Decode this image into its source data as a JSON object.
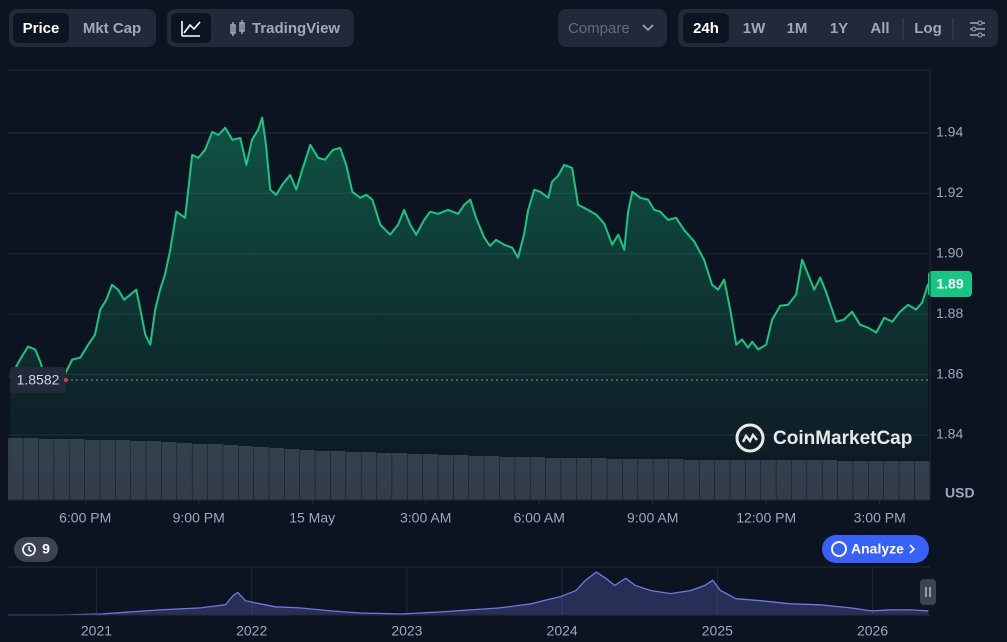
{
  "toolbar": {
    "price": "Price",
    "mkt_cap": "Mkt Cap",
    "tradingview": "TradingView",
    "compare": "Compare",
    "ranges": [
      "24h",
      "1W",
      "1M",
      "1Y",
      "All"
    ],
    "log": "Log"
  },
  "chart_data": {
    "type": "line",
    "color": "#16c784",
    "grid": true,
    "y_unit": "USD",
    "watermark": "CoinMarketCap",
    "open_price": 1.8582,
    "current_price": 1.89,
    "xlim": [
      15.96,
      40.33
    ],
    "xticks": [
      {
        "value": 18,
        "label": "6:00 PM"
      },
      {
        "value": 21,
        "label": "9:00 PM"
      },
      {
        "value": 24,
        "label": "15 May"
      },
      {
        "value": 27,
        "label": "3:00 AM"
      },
      {
        "value": 30,
        "label": "6:00 AM"
      },
      {
        "value": 33,
        "label": "9:00 AM"
      },
      {
        "value": 36,
        "label": "12:00 PM"
      },
      {
        "value": 39,
        "label": "3:00 PM"
      }
    ],
    "ylim": [
      1.8185,
      1.9608
    ],
    "yticks": [
      1.84,
      1.86,
      1.88,
      {
        "value": 1.9,
        "label": "1.90"
      },
      1.92,
      1.94
    ],
    "x": [
      16.02,
      16.28,
      16.49,
      16.68,
      16.81,
      16.94,
      17.21,
      17.47,
      17.66,
      17.87,
      18.08,
      18.26,
      18.4,
      18.56,
      18.71,
      18.87,
      19.03,
      19.19,
      19.35,
      19.45,
      19.59,
      19.72,
      19.85,
      19.98,
      20.11,
      20.25,
      20.41,
      20.64,
      20.83,
      20.99,
      21.17,
      21.36,
      21.52,
      21.7,
      21.89,
      22.1,
      22.26,
      22.41,
      22.57,
      22.68,
      22.78,
      22.89,
      23.05,
      23.21,
      23.42,
      23.58,
      23.74,
      23.95,
      24.16,
      24.34,
      24.55,
      24.74,
      24.9,
      25.06,
      25.27,
      25.43,
      25.59,
      25.8,
      26.06,
      26.27,
      26.43,
      26.59,
      26.75,
      26.96,
      27.12,
      27.33,
      27.59,
      27.86,
      28.02,
      28.18,
      28.33,
      28.55,
      28.7,
      28.86,
      29.07,
      29.29,
      29.44,
      29.6,
      29.71,
      29.87,
      30.03,
      30.24,
      30.34,
      30.5,
      30.66,
      30.87,
      31.03,
      31.29,
      31.51,
      31.72,
      31.93,
      32.09,
      32.25,
      32.35,
      32.46,
      32.67,
      32.88,
      33.04,
      33.2,
      33.41,
      33.62,
      33.83,
      34.1,
      34.36,
      34.57,
      34.73,
      34.89,
      35.05,
      35.21,
      35.36,
      35.52,
      35.63,
      35.79,
      36.0,
      36.16,
      36.37,
      36.58,
      36.79,
      36.95,
      37.11,
      37.27,
      37.43,
      37.58,
      37.85,
      38.06,
      38.27,
      38.48,
      38.7,
      38.91,
      39.12,
      39.33,
      39.54,
      39.75,
      39.96,
      40.12,
      40.28
    ],
    "values": [
      1.859,
      1.865,
      1.8693,
      1.8683,
      1.8643,
      1.859,
      1.859,
      1.8603,
      1.865,
      1.8656,
      1.8699,
      1.8732,
      1.8815,
      1.8848,
      1.8897,
      1.8881,
      1.8848,
      1.8864,
      1.8881,
      1.8821,
      1.8732,
      1.8699,
      1.8815,
      1.8881,
      1.8931,
      1.9013,
      1.9139,
      1.9119,
      1.9327,
      1.9317,
      1.9344,
      1.9403,
      1.9393,
      1.9417,
      1.9377,
      1.9383,
      1.9294,
      1.9377,
      1.941,
      1.945,
      1.936,
      1.9212,
      1.9195,
      1.9228,
      1.9261,
      1.9212,
      1.9278,
      1.936,
      1.9317,
      1.9311,
      1.9344,
      1.935,
      1.9294,
      1.9205,
      1.9185,
      1.9195,
      1.9179,
      1.9096,
      1.9063,
      1.9096,
      1.9145,
      1.9096,
      1.9063,
      1.9112,
      1.9139,
      1.9132,
      1.9145,
      1.9132,
      1.9162,
      1.9179,
      1.9119,
      1.9053,
      1.9026,
      1.9046,
      1.903,
      1.902,
      1.8987,
      1.9063,
      1.9145,
      1.9212,
      1.9205,
      1.9185,
      1.9238,
      1.9258,
      1.9294,
      1.9284,
      1.9162,
      1.9145,
      1.9129,
      1.9099,
      1.903,
      1.9063,
      1.9013,
      1.9139,
      1.9205,
      1.9185,
      1.9179,
      1.9145,
      1.9139,
      1.9112,
      1.9119,
      1.9079,
      1.904,
      1.898,
      1.8897,
      1.8881,
      1.8914,
      1.8815,
      1.8699,
      1.8716,
      1.8689,
      1.8709,
      1.8683,
      1.8699,
      1.8782,
      1.8828,
      1.8831,
      1.8864,
      1.898,
      1.8931,
      1.8881,
      1.8921,
      1.8874,
      1.8775,
      1.8782,
      1.8808,
      1.8765,
      1.8755,
      1.8739,
      1.8788,
      1.8775,
      1.8808,
      1.8831,
      1.8815,
      1.8838,
      1.89
    ],
    "volume": {
      "ylim": [
        0,
        62
      ],
      "color": "#343b4a",
      "values": [
        62,
        62,
        61,
        61,
        61,
        60,
        60,
        60,
        59,
        59,
        58,
        57,
        56,
        56,
        55,
        54,
        53,
        52,
        51,
        50,
        49,
        49,
        48,
        48,
        47,
        47,
        46,
        46,
        45,
        45,
        44,
        44,
        43,
        43,
        43,
        42,
        42,
        42,
        42,
        41,
        41,
        41,
        41,
        41,
        40,
        40,
        40,
        40,
        40,
        40,
        40,
        40,
        40,
        40,
        39,
        39,
        39,
        39,
        39,
        39
      ]
    }
  },
  "overview": {
    "type": "area",
    "color": "#6c78e6",
    "xlim": [
      2020.43,
      2026.37
    ],
    "ylim": [
      0,
      47
    ],
    "xticks": [
      2021,
      2022,
      2023,
      2024,
      2025,
      2026
    ],
    "x": [
      2020.43,
      2020.77,
      2021.03,
      2021.22,
      2021.41,
      2021.67,
      2021.83,
      2021.88,
      2021.91,
      2021.96,
      2022.02,
      2022.09,
      2022.15,
      2022.31,
      2022.51,
      2022.7,
      2022.96,
      2023.22,
      2023.41,
      2023.6,
      2023.8,
      2023.93,
      2023.99,
      2024.09,
      2024.15,
      2024.22,
      2024.28,
      2024.34,
      2024.41,
      2024.47,
      2024.57,
      2024.7,
      2024.83,
      2024.92,
      2024.97,
      2025.02,
      2025.12,
      2025.28,
      2025.47,
      2025.66,
      2025.86,
      2025.99,
      2026.12,
      2026.24,
      2026.36
    ],
    "values": [
      0,
      0,
      1,
      3,
      5,
      7,
      10,
      19,
      22,
      14,
      12,
      10,
      8,
      7,
      4,
      2,
      1,
      3,
      5,
      7,
      11,
      16,
      18,
      24,
      34,
      42,
      36,
      29,
      36,
      29,
      24,
      21,
      24,
      29,
      34,
      24,
      16,
      14,
      11,
      10,
      7,
      4,
      5,
      5,
      4
    ]
  },
  "footer": {
    "history": 9,
    "analyze": "Analyze"
  }
}
